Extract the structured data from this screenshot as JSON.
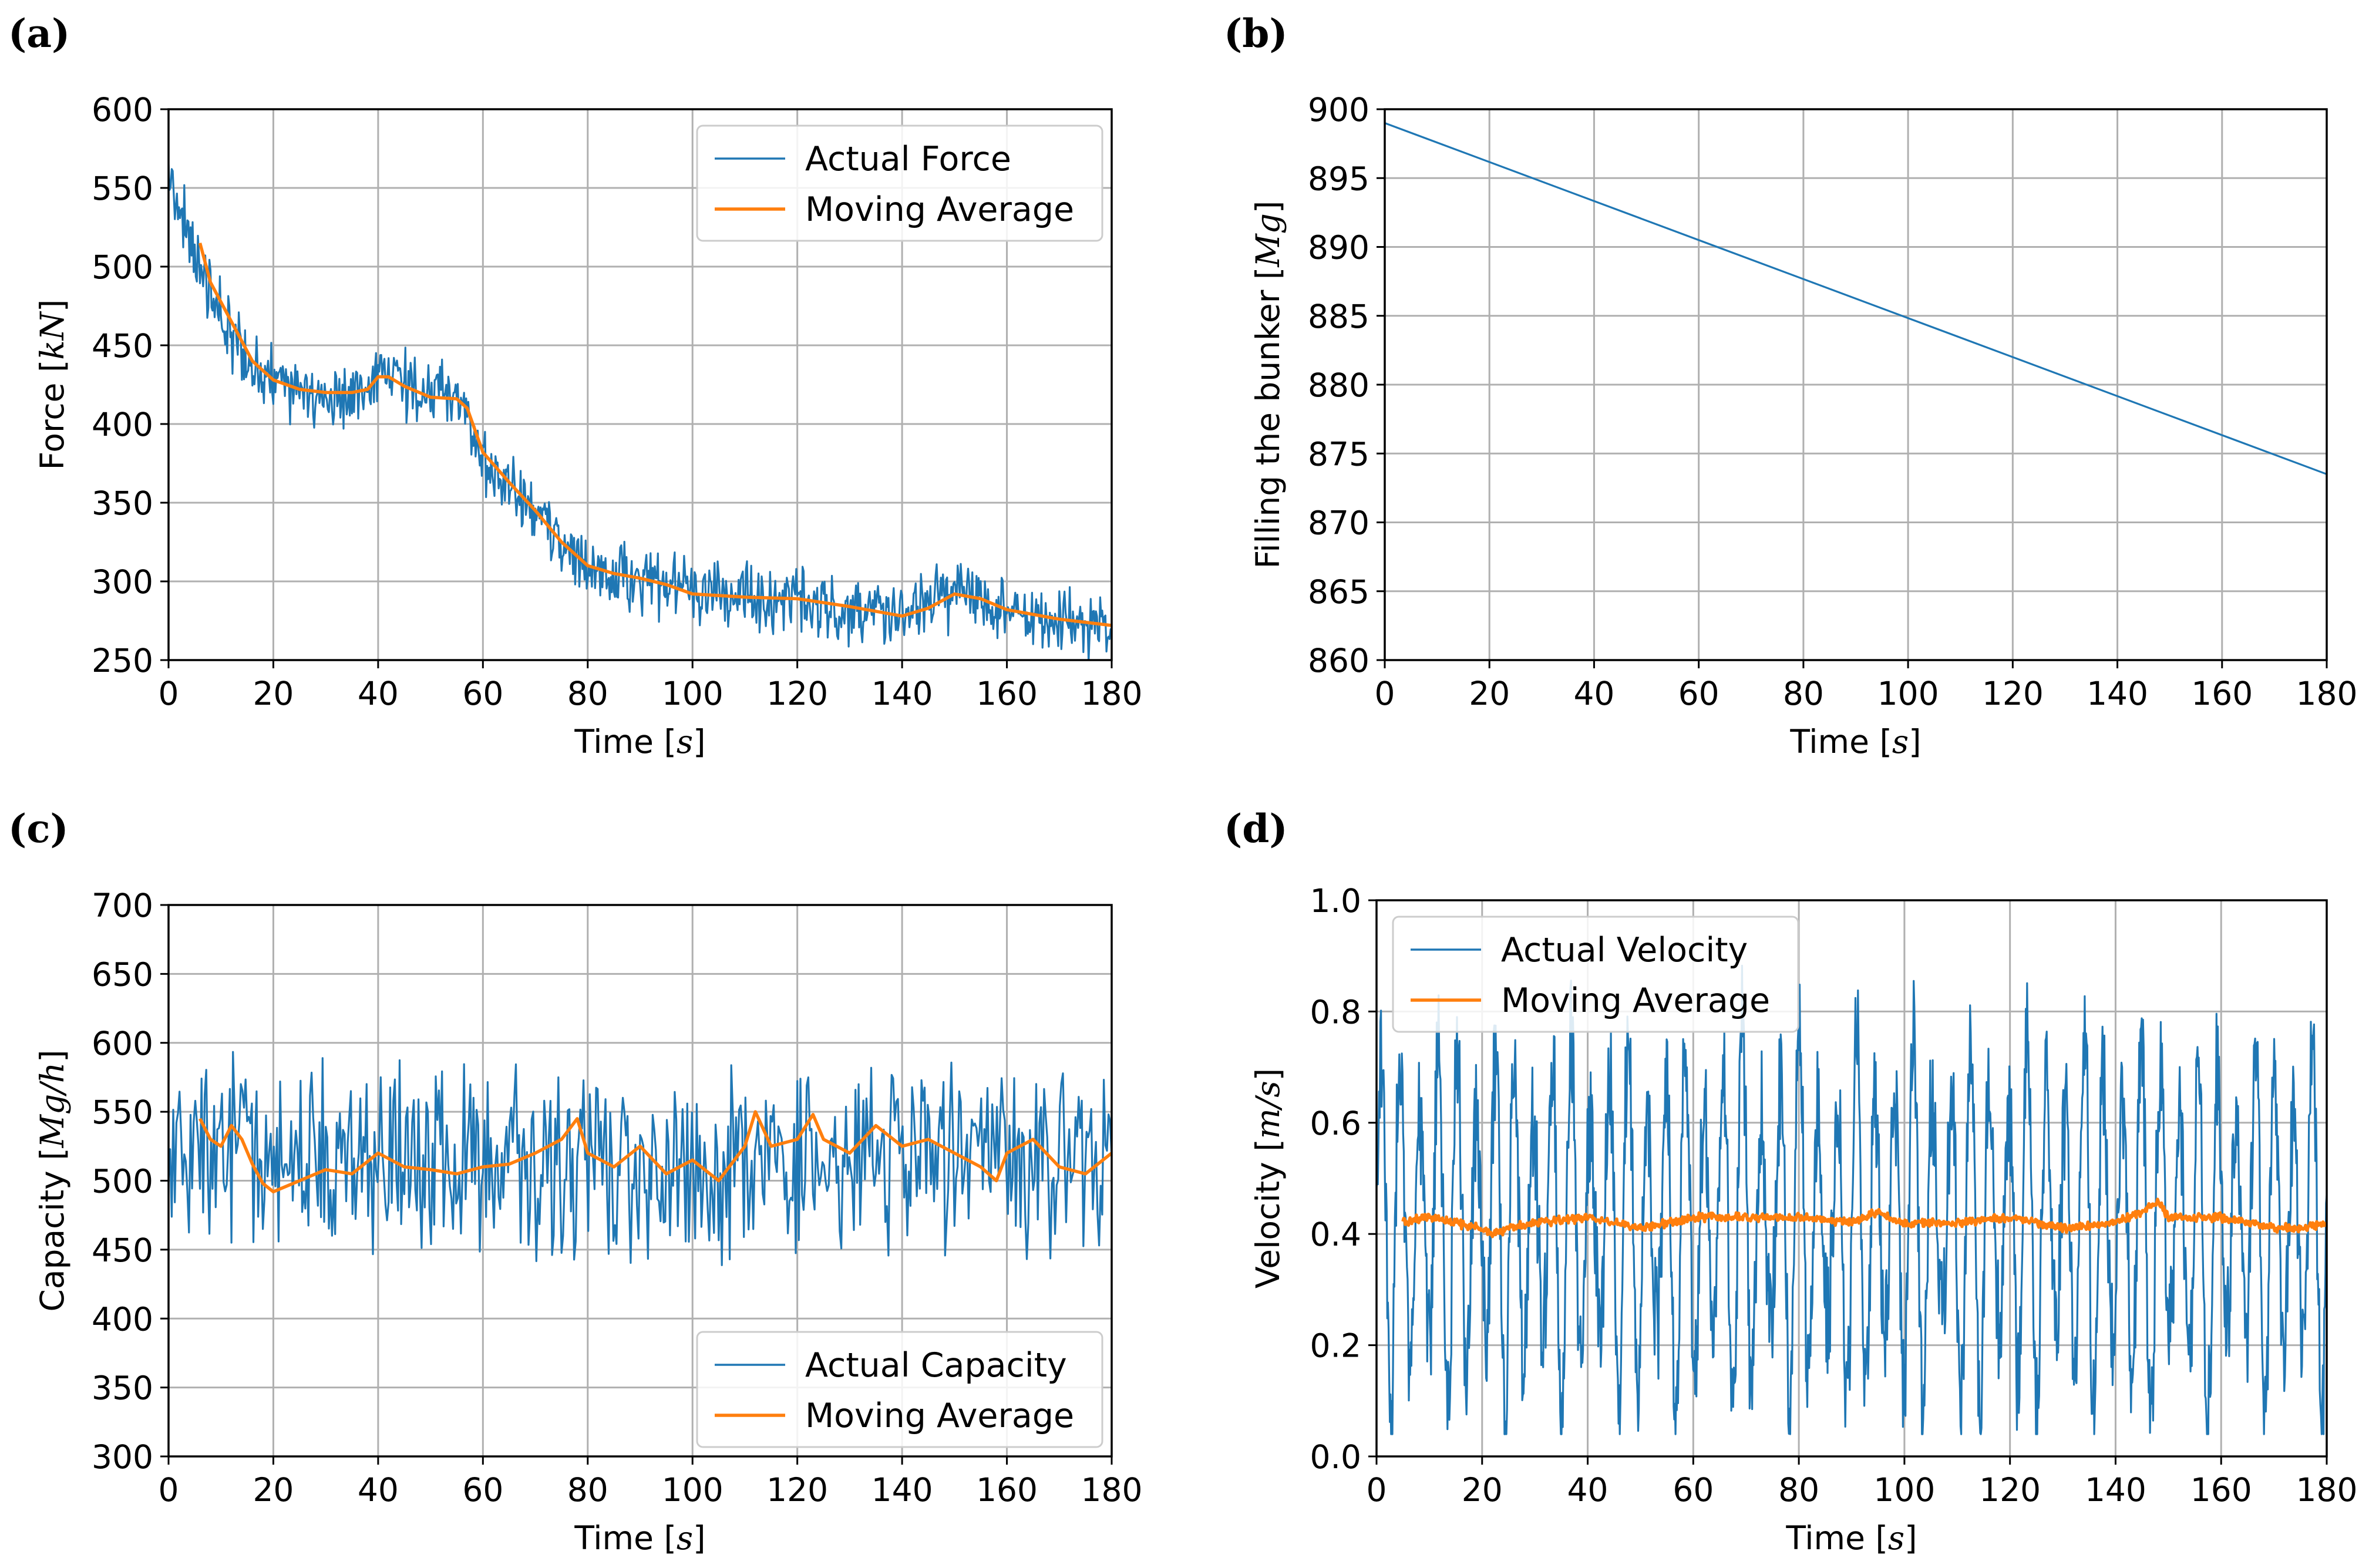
{
  "figure": {
    "colors": {
      "actual": "#1f77b4",
      "average": "#ff7f0e",
      "grid": "#b0b0b0"
    }
  },
  "chart_data": [
    {
      "id": "a",
      "panel_label": "(a)",
      "type": "line",
      "xlabel": "Time [s]",
      "xlabel_plain": "Time [",
      "xlabel_unit": "s",
      "xlabel_close": "]",
      "ylabel_plain": "Force [",
      "ylabel_unit": "kN",
      "ylabel_close": "]",
      "xlim": [
        0,
        180
      ],
      "ylim": [
        250,
        600
      ],
      "xticks": [
        0,
        20,
        40,
        60,
        80,
        100,
        120,
        140,
        160,
        180
      ],
      "yticks": [
        250,
        300,
        350,
        400,
        450,
        500,
        550,
        600
      ],
      "grid": true,
      "legend_position": "top-right",
      "legend": [
        "Actual Force",
        "Moving Average"
      ],
      "series": [
        {
          "name": "Actual Force",
          "noise": 18,
          "x": [
            0,
            2,
            5,
            8,
            12,
            16,
            20,
            25,
            30,
            35,
            38,
            40,
            42,
            45,
            50,
            55,
            57,
            60,
            65,
            70,
            75,
            80,
            85,
            90,
            95,
            100,
            110,
            120,
            130,
            140,
            145,
            150,
            155,
            160,
            170,
            180
          ],
          "values": [
            560,
            545,
            505,
            478,
            458,
            438,
            425,
            420,
            418,
            418,
            425,
            438,
            432,
            426,
            418,
            416,
            405,
            375,
            358,
            342,
            322,
            308,
            303,
            302,
            298,
            292,
            290,
            288,
            283,
            278,
            285,
            292,
            288,
            280,
            275,
            270
          ]
        },
        {
          "name": "Moving Average",
          "x": [
            6,
            8,
            12,
            16,
            20,
            25,
            30,
            35,
            38,
            40,
            42,
            45,
            50,
            55,
            57,
            60,
            65,
            70,
            75,
            80,
            85,
            90,
            95,
            100,
            110,
            120,
            130,
            140,
            145,
            150,
            155,
            160,
            170,
            180
          ],
          "values": [
            515,
            490,
            465,
            440,
            428,
            422,
            420,
            420,
            422,
            430,
            430,
            424,
            417,
            416,
            410,
            382,
            363,
            345,
            325,
            310,
            305,
            302,
            298,
            292,
            290,
            289,
            284,
            278,
            283,
            292,
            289,
            282,
            276,
            272
          ]
        }
      ]
    },
    {
      "id": "b",
      "panel_label": "(b)",
      "type": "line",
      "xlabel": "Time [s]",
      "xlabel_plain": "Time [",
      "xlabel_unit": "s",
      "xlabel_close": "]",
      "ylabel_plain": "Filling the bunker [",
      "ylabel_unit": "Mg",
      "ylabel_close": "]",
      "xlim": [
        0,
        180
      ],
      "ylim": [
        860,
        900
      ],
      "xticks": [
        0,
        20,
        40,
        60,
        80,
        100,
        120,
        140,
        160,
        180
      ],
      "yticks": [
        860,
        865,
        870,
        875,
        880,
        885,
        890,
        895,
        900
      ],
      "grid": true,
      "legend_position": "none",
      "legend": [],
      "series": [
        {
          "name": "Filling the bunker",
          "noise": 0,
          "x": [
            0,
            180
          ],
          "values": [
            899,
            873.5
          ]
        }
      ]
    },
    {
      "id": "c",
      "panel_label": "(c)",
      "type": "line",
      "xlabel": "Time [s]",
      "xlabel_plain": "Time [",
      "xlabel_unit": "s",
      "xlabel_close": "]",
      "ylabel_plain": "Capacity [",
      "ylabel_unit": "Mg/h",
      "ylabel_close": "]",
      "xlim": [
        0,
        180
      ],
      "ylim": [
        300,
        700
      ],
      "xticks": [
        0,
        20,
        40,
        60,
        80,
        100,
        120,
        140,
        160,
        180
      ],
      "yticks": [
        300,
        350,
        400,
        450,
        500,
        550,
        600,
        650,
        700
      ],
      "grid": true,
      "legend_position": "bottom-right",
      "legend": [
        "Actual Capacity",
        "Moving Average"
      ],
      "series": [
        {
          "name": "Actual Capacity",
          "noise": 55,
          "x": [
            0,
            180
          ],
          "values": [
            515,
            515
          ]
        },
        {
          "name": "Moving Average",
          "x": [
            6,
            8,
            10,
            12,
            14,
            16,
            18,
            20,
            25,
            30,
            35,
            40,
            45,
            50,
            55,
            60,
            65,
            70,
            75,
            78,
            80,
            85,
            90,
            95,
            100,
            105,
            110,
            112,
            115,
            120,
            123,
            125,
            130,
            135,
            140,
            145,
            150,
            155,
            158,
            160,
            165,
            170,
            175,
            180
          ],
          "values": [
            545,
            530,
            525,
            540,
            530,
            512,
            498,
            492,
            500,
            508,
            505,
            520,
            510,
            508,
            505,
            510,
            512,
            520,
            530,
            545,
            520,
            510,
            525,
            505,
            515,
            500,
            525,
            550,
            525,
            530,
            548,
            530,
            520,
            540,
            525,
            530,
            520,
            510,
            500,
            520,
            530,
            510,
            505,
            520
          ]
        }
      ]
    },
    {
      "id": "d",
      "panel_label": "(d)",
      "type": "line",
      "xlabel": "Time [s]",
      "xlabel_plain": "Time [",
      "xlabel_unit": "s",
      "xlabel_close": "]",
      "ylabel_plain": "Velocity [",
      "ylabel_unit": "m/s",
      "ylabel_close": "]",
      "xlim": [
        0,
        180
      ],
      "ylim": [
        0.0,
        1.0
      ],
      "xticks": [
        0,
        20,
        40,
        60,
        80,
        100,
        120,
        140,
        160,
        180
      ],
      "yticks": [
        0.0,
        0.2,
        0.4,
        0.6,
        0.8,
        1.0
      ],
      "ytick_labels": [
        "0.0",
        "0.2",
        "0.4",
        "0.6",
        "0.8",
        "1.0"
      ],
      "grid": true,
      "legend_position": "top-left",
      "legend": [
        "Actual Velocity",
        "Moving Average"
      ],
      "series": [
        {
          "name": "Actual Velocity",
          "oscillation_amplitude": 0.36,
          "oscillation_period": 3.6,
          "x": [
            0,
            180
          ],
          "values": [
            0.42,
            0.42
          ]
        },
        {
          "name": "Moving Average",
          "noise": 0.006,
          "x": [
            5,
            10,
            15,
            20,
            22,
            25,
            30,
            40,
            50,
            55,
            60,
            70,
            80,
            90,
            95,
            100,
            110,
            120,
            130,
            140,
            145,
            148,
            150,
            160,
            170,
            175,
            180
          ],
          "values": [
            0.42,
            0.43,
            0.42,
            0.41,
            0.4,
            0.41,
            0.42,
            0.43,
            0.41,
            0.42,
            0.43,
            0.43,
            0.43,
            0.42,
            0.44,
            0.42,
            0.42,
            0.43,
            0.41,
            0.42,
            0.44,
            0.46,
            0.43,
            0.43,
            0.41,
            0.41,
            0.42
          ]
        }
      ]
    }
  ]
}
